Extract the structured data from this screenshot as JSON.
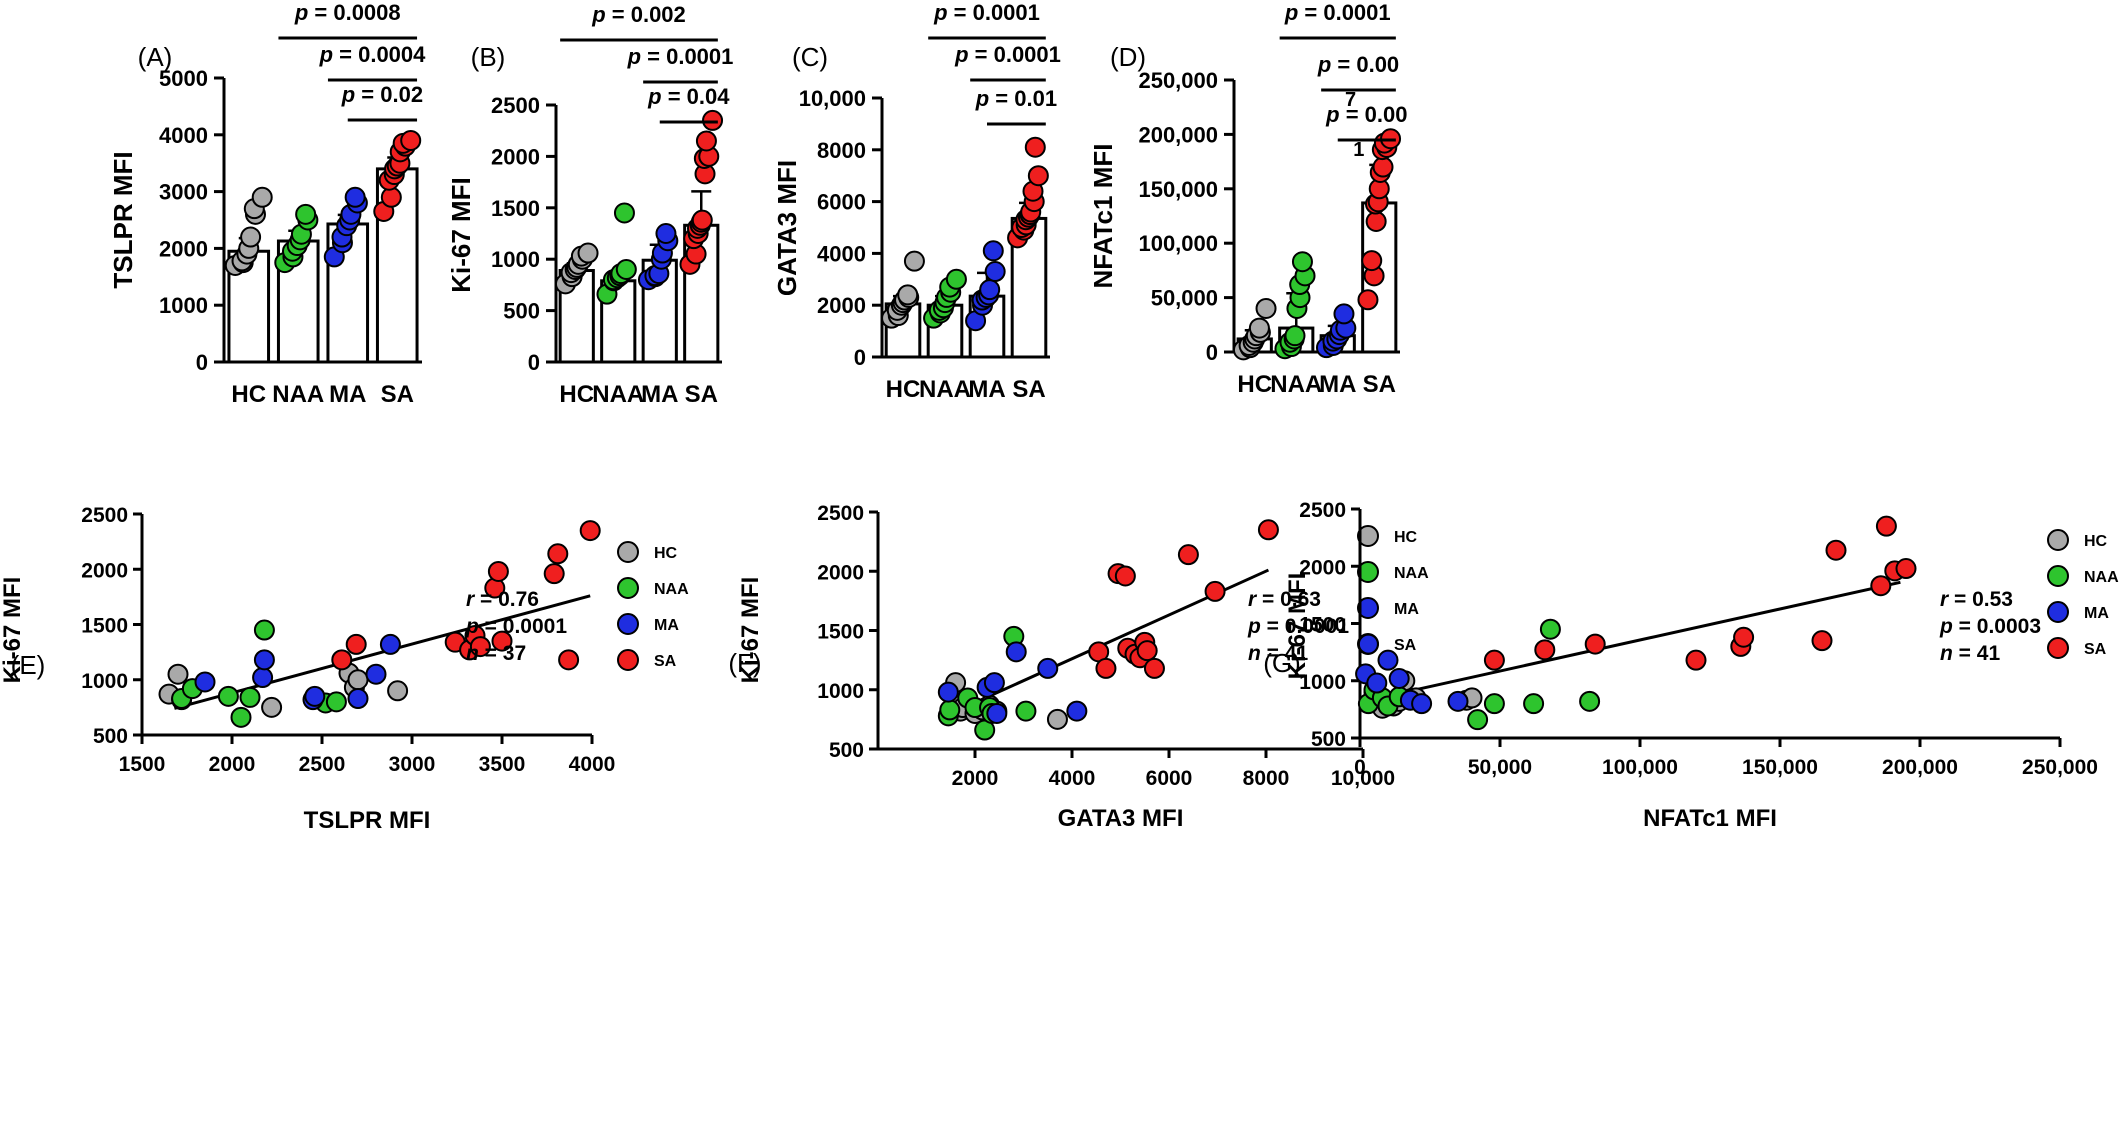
{
  "figure": {
    "group_colors": {
      "HC": "#a9a9a9",
      "NAA": "#2ec42e",
      "MA": "#1f2de0",
      "SA": "#ef1f1f"
    },
    "legend_labels": [
      "HC",
      "NAA",
      "MA",
      "SA"
    ]
  },
  "chart_data": [
    {
      "type": "bar",
      "panel_label": "(A)",
      "categories": [
        "HC",
        "NAA",
        "MA",
        "SA"
      ],
      "ylabel": "TSLPR MFI",
      "ylim": [
        0,
        5000
      ],
      "yticks": [
        0,
        1000,
        2000,
        3000,
        4000,
        5000
      ],
      "ytick_labels": [
        "0",
        "1000",
        "2000",
        "3000",
        "4000",
        "5000"
      ],
      "means": [
        1950,
        2130,
        2430,
        3400
      ],
      "errors": [
        230,
        180,
        160,
        200
      ],
      "points": [
        [
          1700,
          1750,
          1780,
          1900,
          2000,
          2200,
          2600,
          2700,
          2900
        ],
        [
          1750,
          1850,
          1950,
          2050,
          2150,
          2250,
          2500,
          2600
        ],
        [
          1850,
          2100,
          2200,
          2400,
          2500,
          2600,
          2800,
          2900
        ],
        [
          2650,
          2900,
          3200,
          3300,
          3400,
          3450,
          3500,
          3700,
          3800,
          3850,
          3900
        ]
      ],
      "comparisons": [
        {
          "from": "NAA",
          "to": "SA",
          "label": "p = 0.0008"
        },
        {
          "from": "MA",
          "to": "SA",
          "label": "p = 0.0004"
        },
        {
          "from": "SA",
          "to": "SA",
          "label": "p = 0.02"
        }
      ]
    },
    {
      "type": "bar",
      "panel_label": "(B)",
      "categories": [
        "HC",
        "NAA",
        "MA",
        "SA"
      ],
      "ylabel": "Ki-67 MFI",
      "ylim": [
        0,
        2500
      ],
      "yticks": [
        0,
        500,
        1000,
        1500,
        2000,
        2500
      ],
      "ytick_labels": [
        "0",
        "500",
        "1000",
        "1500",
        "2000",
        "2500"
      ],
      "means": [
        890,
        790,
        990,
        1330
      ],
      "errors": [
        70,
        80,
        150,
        330
      ],
      "points": [
        [
          760,
          830,
          870,
          900,
          920,
          950,
          1000,
          1030,
          1060
        ],
        [
          660,
          790,
          800,
          820,
          840,
          860,
          900,
          1450
        ],
        [
          800,
          830,
          840,
          860,
          1000,
          1060,
          1180,
          1250
        ],
        [
          950,
          1050,
          1200,
          1250,
          1300,
          1330,
          1360,
          1380,
          1830,
          1980,
          2000,
          2150,
          2350
        ]
      ],
      "comparisons": [
        {
          "from": "HC",
          "to": "SA",
          "label": "p = 0.002"
        },
        {
          "from": "MA",
          "to": "SA",
          "label": "p = 0.0001"
        },
        {
          "from": "SA",
          "to": "SA",
          "label": "p = 0.04"
        }
      ]
    },
    {
      "type": "bar",
      "panel_label": "(C)",
      "categories": [
        "HC",
        "NAA",
        "MA",
        "SA"
      ],
      "ylabel": "GATA3 MFI",
      "ylim": [
        0,
        10000
      ],
      "yticks": [
        0,
        2000,
        4000,
        6000,
        8000,
        10000
      ],
      "ytick_labels": [
        "0",
        "2000",
        "4000",
        "6000",
        "8000",
        "10,000"
      ],
      "means": [
        2050,
        2000,
        2350,
        5350
      ],
      "errors": [
        300,
        350,
        900,
        600
      ],
      "points": [
        [
          1500,
          1600,
          1800,
          2000,
          2100,
          2200,
          2300,
          2400,
          3700
        ],
        [
          1500,
          1700,
          1800,
          1900,
          2100,
          2300,
          2500,
          2700,
          3000
        ],
        [
          1400,
          2000,
          2200,
          2300,
          2400,
          2600,
          3300,
          4100
        ],
        [
          4600,
          4900,
          5000,
          5100,
          5300,
          5400,
          5500,
          5600,
          6000,
          6400,
          7000,
          8100
        ]
      ],
      "comparisons": [
        {
          "from": "NAA",
          "to": "SA",
          "label": "p = 0.0001"
        },
        {
          "from": "MA",
          "to": "SA",
          "label": "p = 0.0001"
        },
        {
          "from": "SA",
          "to": "SA",
          "label": "p = 0.01"
        }
      ]
    },
    {
      "type": "bar",
      "panel_label": "(D)",
      "categories": [
        "HC",
        "NAA",
        "MA",
        "SA"
      ],
      "ylabel": "NFATc1 MFI",
      "ylim": [
        0,
        250000
      ],
      "yticks": [
        0,
        50000,
        100000,
        150000,
        200000,
        250000
      ],
      "ytick_labels": [
        "0",
        "50,000",
        "100,000",
        "150,000",
        "200,000",
        "250,000"
      ],
      "means": [
        12000,
        22000,
        15000,
        137000
      ],
      "errors": [
        8000,
        32000,
        9000,
        35000
      ],
      "points": [
        [
          2000,
          4000,
          6000,
          9000,
          12000,
          15000,
          18000,
          22000,
          40000
        ],
        [
          3000,
          5000,
          9000,
          12000,
          15000,
          40000,
          50000,
          62000,
          70000,
          83000
        ],
        [
          4000,
          6000,
          10000,
          12000,
          16000,
          20000,
          22000,
          35000
        ],
        [
          48000,
          70000,
          84000,
          120000,
          136000,
          138000,
          150000,
          165000,
          170000,
          186000,
          188000,
          192000,
          196000
        ]
      ],
      "comparisons": [
        {
          "from": "NAA",
          "to": "SA",
          "label": "p = 0.0001"
        },
        {
          "from": "MA",
          "to": "SA",
          "label": "p = 0.00",
          "sublabel": "7"
        },
        {
          "from": "SA",
          "to": "SA",
          "label": "p = 0.00",
          "sublabel": "1"
        }
      ]
    },
    {
      "type": "scatter",
      "panel_label": "(E)",
      "xlabel": "TSLPR MFI",
      "ylabel": "Ki-67 MFI",
      "xlim": [
        1500,
        4000
      ],
      "ylim": [
        500,
        2500
      ],
      "xticks": [
        1500,
        2000,
        2500,
        3000,
        3500,
        4000
      ],
      "xtick_labels": [
        "1500",
        "2000",
        "2500",
        "3000",
        "3500",
        "4000"
      ],
      "yticks": [
        500,
        1000,
        1500,
        2000,
        2500
      ],
      "ytick_labels": [
        "500",
        "1000",
        "1500",
        "2000",
        "2500"
      ],
      "stats": {
        "r": "= 0.76",
        "p": "= 0.0001",
        "n": "= 37"
      },
      "fit_line": {
        "x": [
          1680,
          3990
        ],
        "y": [
          740,
          1760
        ]
      },
      "groups": [
        {
          "name": "HC",
          "x": [
            1650,
            1700,
            1720,
            2220,
            2650,
            2680,
            2700,
            2920
          ],
          "y": [
            870,
            1050,
            820,
            750,
            1060,
            930,
            1000,
            900
          ]
        },
        {
          "name": "NAA",
          "x": [
            1720,
            1780,
            1980,
            2050,
            2100,
            2180,
            2520,
            2580
          ],
          "y": [
            830,
            920,
            850,
            660,
            840,
            1450,
            790,
            800
          ]
        },
        {
          "name": "MA",
          "x": [
            1850,
            2170,
            2180,
            2450,
            2460,
            2700,
            2800,
            2880
          ],
          "y": [
            980,
            1020,
            1180,
            820,
            850,
            830,
            1050,
            1320
          ]
        },
        {
          "name": "SA",
          "x": [
            2610,
            2690,
            3240,
            3320,
            3350,
            3380,
            3460,
            3480,
            3500,
            3790,
            3810,
            3870,
            3990
          ],
          "y": [
            1180,
            1320,
            1340,
            1270,
            1400,
            1300,
            1830,
            1980,
            1350,
            1960,
            2140,
            1180,
            2350
          ]
        }
      ]
    },
    {
      "type": "scatter",
      "panel_label": "(F)",
      "xlabel": "GATA3 MFI",
      "ylabel": "Ki-67 MFI",
      "xlim": [
        0,
        10000
      ],
      "ylim": [
        500,
        2500
      ],
      "xticks": [
        2000,
        4000,
        6000,
        8000,
        10000
      ],
      "xtick_labels": [
        "2000",
        "4000",
        "6000",
        "8000",
        "10,000"
      ],
      "yticks": [
        500,
        1000,
        1500,
        2000,
        2500
      ],
      "ytick_labels": [
        "500",
        "1000",
        "1500",
        "2000",
        "2500"
      ],
      "stats": {
        "r": "= 0.63",
        "p": "= 0.0001",
        "n": "= 41"
      },
      "fit_line": {
        "x": [
          1450,
          8050
        ],
        "y": [
          790,
          2010
        ]
      },
      "groups": [
        {
          "name": "HC",
          "x": [
            1600,
            1700,
            1750,
            2000,
            2150,
            2300,
            2450,
            3700
          ],
          "y": [
            1060,
            820,
            850,
            800,
            830,
            870,
            820,
            750
          ]
        },
        {
          "name": "NAA",
          "x": [
            1450,
            1480,
            1850,
            2000,
            2200,
            2300,
            2350,
            2800,
            3050
          ],
          "y": [
            780,
            830,
            930,
            850,
            660,
            850,
            800,
            1450,
            820
          ]
        },
        {
          "name": "MA",
          "x": [
            1450,
            2250,
            2400,
            2450,
            2850,
            3500,
            4100
          ],
          "y": [
            980,
            1020,
            1060,
            800,
            1320,
            1180,
            820
          ]
        },
        {
          "name": "SA",
          "x": [
            4550,
            4700,
            4950,
            5100,
            5150,
            5300,
            5400,
            5500,
            5550,
            5700,
            6400,
            6950,
            8050
          ],
          "y": [
            1320,
            1180,
            1980,
            1960,
            1350,
            1300,
            1270,
            1400,
            1330,
            1180,
            2140,
            1830,
            2350
          ]
        }
      ]
    },
    {
      "type": "scatter",
      "panel_label": "(G)",
      "xlabel": "NFATc1 MFI",
      "ylabel": "Ki-67 MFI",
      "xlim": [
        0,
        250000
      ],
      "ylim": [
        500,
        2500
      ],
      "xticks": [
        0,
        50000,
        100000,
        150000,
        200000,
        250000
      ],
      "xtick_labels": [
        "0",
        "50,000",
        "100,000",
        "150,000",
        "200,000",
        "250,000"
      ],
      "yticks": [
        500,
        1000,
        1500,
        2000,
        2500
      ],
      "ytick_labels": [
        "500",
        "1000",
        "1500",
        "2000",
        "2500"
      ],
      "stats": {
        "r": "= 0.53",
        "p": "= 0.0003",
        "n": "= 41"
      },
      "fit_line": {
        "x": [
          3000,
          193000
        ],
        "y": [
          830,
          1860
        ]
      },
      "groups": [
        {
          "name": "HC",
          "x": [
            5000,
            8000,
            12000,
            14000,
            16000,
            20000,
            38000,
            40000
          ],
          "y": [
            900,
            760,
            780,
            820,
            1000,
            850,
            830,
            850
          ]
        },
        {
          "name": "NAA",
          "x": [
            3000,
            5000,
            8000,
            10000,
            14000,
            42000,
            48000,
            62000,
            68000,
            82000
          ],
          "y": [
            800,
            920,
            850,
            780,
            860,
            660,
            800,
            800,
            1450,
            820
          ]
        },
        {
          "name": "MA",
          "x": [
            2000,
            3000,
            6000,
            10000,
            14000,
            18000,
            22000,
            35000
          ],
          "y": [
            1060,
            1320,
            980,
            1180,
            1020,
            830,
            800,
            820
          ]
        },
        {
          "name": "SA",
          "x": [
            48000,
            66000,
            84000,
            120000,
            136000,
            137000,
            165000,
            170000,
            186000,
            188000,
            191000,
            195000
          ],
          "y": [
            1180,
            1270,
            1320,
            1180,
            1300,
            1380,
            1350,
            2140,
            1830,
            2350,
            1960,
            1980
          ]
        }
      ]
    }
  ]
}
